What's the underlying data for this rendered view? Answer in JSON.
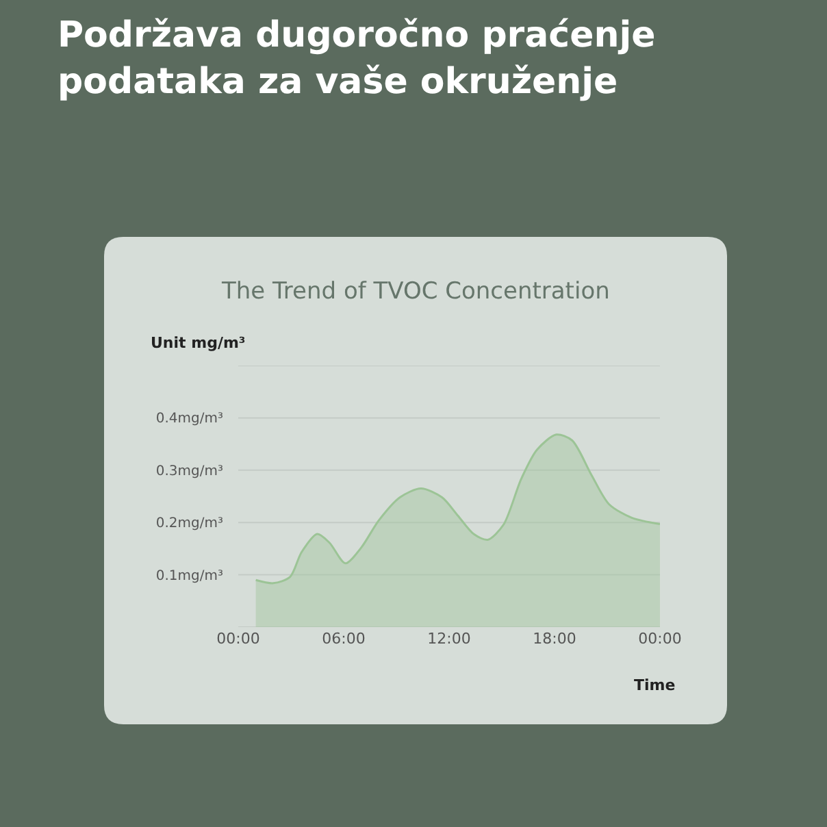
{
  "chart_data": {
    "type": "area",
    "title": "Podržava dugoročno praćenje podataka za vaše okruženje",
    "subtitle": "The Trend of TVOC Concentration",
    "xlabel": "Time",
    "ylabel": "Unit mg/m³",
    "x": [
      1.0,
      2.0,
      2.95,
      3.6,
      4.5,
      5.2,
      6.1,
      7.0,
      8.0,
      9.2,
      10.4,
      11.6,
      12.5,
      13.4,
      14.2,
      15.1,
      16.1,
      17.0,
      18.1,
      19.0,
      20.1,
      21.1,
      22.4,
      24.0
    ],
    "series": [
      {
        "color": "#9cc496",
        "values": [
          0.09,
          0.084,
          0.096,
          0.143,
          0.178,
          0.161,
          0.122,
          0.152,
          0.204,
          0.248,
          0.265,
          0.248,
          0.213,
          0.178,
          0.167,
          0.196,
          0.283,
          0.339,
          0.368,
          0.357,
          0.291,
          0.235,
          0.209,
          0.197
        ]
      }
    ],
    "xlim": [
      0,
      24
    ],
    "xticks": [
      {
        "value": 0,
        "label": "00:00"
      },
      {
        "value": 6,
        "label": "06:00"
      },
      {
        "value": 12,
        "label": "12:00"
      },
      {
        "value": 18,
        "label": "18:00"
      },
      {
        "value": 24,
        "label": "00:00"
      }
    ],
    "ylim": [
      0,
      0.5
    ],
    "yticks": [
      {
        "value": 0,
        "label": null
      },
      {
        "value": 0.1,
        "label": "0.1mg/m³"
      },
      {
        "value": 0.2,
        "label": "0.2mg/m³"
      },
      {
        "value": 0.3,
        "label": "0.3mg/m³"
      },
      {
        "value": 0.4,
        "label": "0.4mg/m³"
      },
      {
        "value": 0.5,
        "label": null
      }
    ],
    "grid": "y",
    "legend": false,
    "marker": "none"
  }
}
